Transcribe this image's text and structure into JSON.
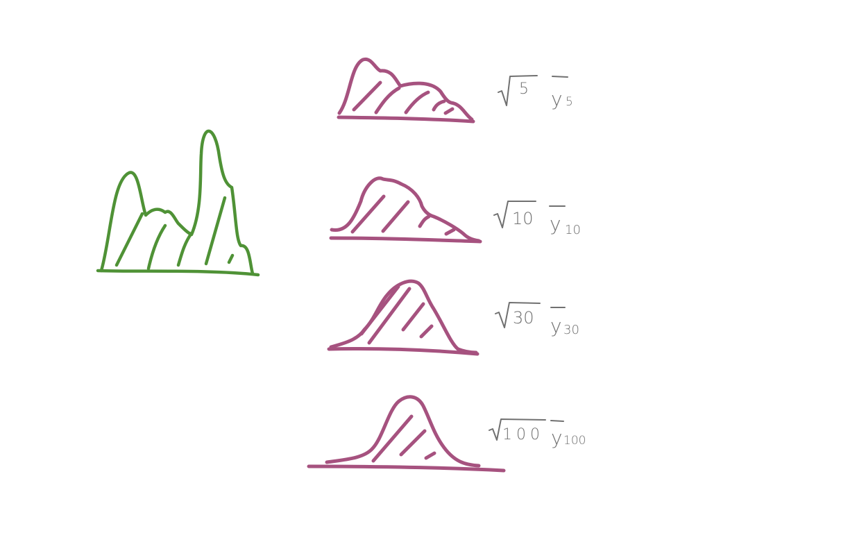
{
  "colors": {
    "population": "#4f9236",
    "sampling": "#a6527f",
    "annotation": "#707070"
  },
  "population": {
    "shape": "bimodal"
  },
  "sampling_distributions": [
    {
      "n": "5"
    },
    {
      "n": "10"
    },
    {
      "n": "30"
    },
    {
      "n": "100"
    }
  ]
}
